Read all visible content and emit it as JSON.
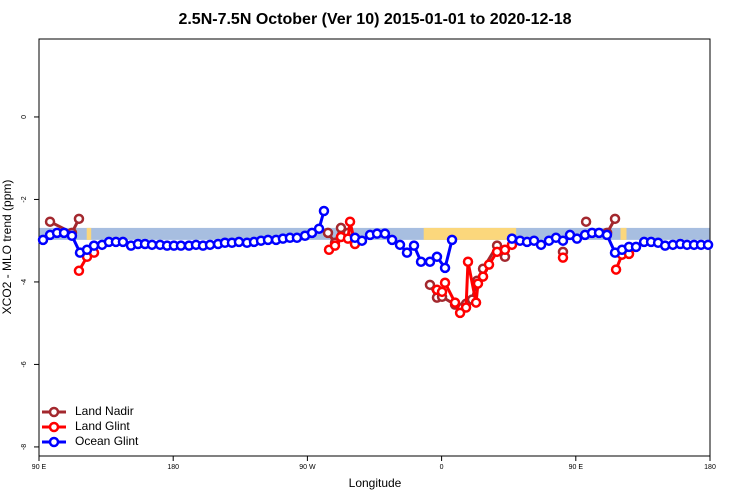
{
  "chart_data": {
    "type": "line",
    "title": "2.5N-7.5N October (Ver 10)   2015-01-01 to 2020-12-18",
    "xlabel": "Longitude",
    "ylabel": "XCO2 - MLO trend (ppm)",
    "xlim": [
      90,
      540
    ],
    "ylim": [
      -8.22,
      1.89
    ],
    "xticks": [
      {
        "value": 90,
        "label": "90 E"
      },
      {
        "value": 180,
        "label": "180"
      },
      {
        "value": 270,
        "label": "90 W"
      },
      {
        "value": 360,
        "label": "0"
      },
      {
        "value": 450,
        "label": "90 E"
      },
      {
        "value": 540,
        "label": "180"
      }
    ],
    "yticks": [
      0,
      -2,
      -4,
      -6,
      -8
    ],
    "legend": "bottom-left",
    "band": {
      "lower": -2.98,
      "upper": -2.69,
      "color": "#a7bee0"
    },
    "band_highlights": [
      {
        "from": 122,
        "to": 125,
        "color": "#fbd77c"
      },
      {
        "from": 348,
        "to": 410,
        "color": "#fbd77c"
      },
      {
        "from": 480,
        "to": 484,
        "color": "#fbd77c"
      }
    ],
    "series": [
      {
        "name": "Land Nadir",
        "color": "#a3282e",
        "x": [
          97.4,
          112.1,
          116.8,
          200,
          283.8,
          288.5,
          292.5,
          297.2,
          303.3,
          330,
          352.2,
          356.9,
          360.3,
          369,
          376.4,
          380.4,
          383.8,
          387.8,
          397.2,
          402.5,
          420,
          441.4,
          450,
          456.9,
          465,
          471,
          476.3
        ],
        "values": [
          -2.54,
          -2.81,
          -2.47,
          null,
          -2.81,
          -3.05,
          -2.69,
          -2.81,
          -2.98,
          null,
          -4.07,
          -4.38,
          -4.36,
          -4.55,
          -4.53,
          -4.43,
          -3.97,
          -3.68,
          -3.12,
          -3.39,
          null,
          -3.27,
          null,
          -2.54,
          null,
          -2.81,
          -2.47
        ]
      },
      {
        "name": "Land Glint",
        "color": "#ff0000",
        "x": [
          116.8,
          122.2,
          126.9,
          200,
          284.5,
          288.5,
          292.5,
          297.2,
          298.6,
          301.9,
          330,
          356.9,
          360.3,
          362.3,
          369,
          372.4,
          376.4,
          377.7,
          383.1,
          384.4,
          387.8,
          391.8,
          397.2,
          402.5,
          407.2,
          420,
          441.4,
          460,
          477,
          481,
          485.7
        ],
        "values": [
          -3.73,
          -3.39,
          -3.29,
          null,
          -3.22,
          -3.12,
          -2.91,
          -2.95,
          -2.54,
          -3.08,
          null,
          -4.19,
          -4.24,
          -4.02,
          -4.5,
          -4.75,
          -4.62,
          -3.51,
          -4.5,
          -4.04,
          -3.87,
          -3.58,
          -3.27,
          -3.22,
          -3.1,
          null,
          -3.41,
          null,
          -3.7,
          -3.34,
          -3.32
        ]
      },
      {
        "name": "Ocean Glint",
        "color": "#0000ff",
        "x": [
          92.7,
          97.4,
          102.1,
          106.8,
          112.1,
          117.5,
          122.2,
          126.9,
          132.3,
          136.9,
          141.6,
          146.3,
          151.7,
          156.4,
          161.1,
          165.8,
          171.2,
          175.9,
          180.5,
          185.2,
          190.6,
          195.3,
          200,
          204.7,
          210.1,
          214.7,
          219.4,
          224.1,
          229.5,
          234.2,
          238.9,
          243.6,
          249,
          253.6,
          258.3,
          263,
          268.4,
          273.1,
          277.8,
          281.1,
          290,
          301.9,
          306.6,
          312,
          316.7,
          322,
          326.8,
          332.1,
          336.8,
          341.5,
          346.2,
          352.2,
          356.9,
          362.3,
          367,
          390,
          407.2,
          412.6,
          417.3,
          422,
          426.7,
          432,
          436.7,
          441.4,
          446.1,
          450.8,
          456.2,
          460.9,
          465.6,
          470.9,
          476.3,
          481,
          485.7,
          490.4,
          495.8,
          500.5,
          505.2,
          509.9,
          515.1,
          520.1,
          524.6,
          529.3,
          534,
          538.7
        ],
        "values": [
          -2.98,
          -2.86,
          -2.81,
          -2.81,
          -2.88,
          -3.29,
          -3.22,
          -3.12,
          -3.1,
          -3.03,
          -3.03,
          -3.03,
          -3.12,
          -3.08,
          -3.08,
          -3.1,
          -3.1,
          -3.12,
          -3.12,
          -3.12,
          -3.12,
          -3.1,
          -3.12,
          -3.1,
          -3.08,
          -3.05,
          -3.05,
          -3.03,
          -3.05,
          -3.03,
          -3.0,
          -2.98,
          -2.98,
          -2.95,
          -2.93,
          -2.93,
          -2.88,
          -2.81,
          -2.71,
          -2.28,
          null,
          -2.93,
          -3.0,
          -2.86,
          -2.83,
          -2.83,
          -2.98,
          -3.1,
          -3.29,
          -3.12,
          -3.51,
          -3.51,
          -3.39,
          -3.66,
          -2.98,
          null,
          -2.95,
          -3.0,
          -3.03,
          -3.0,
          -3.1,
          -3.0,
          -2.93,
          -3.0,
          -2.86,
          -2.95,
          -2.86,
          -2.81,
          -2.81,
          -2.86,
          -3.29,
          -3.22,
          -3.15,
          -3.15,
          -3.03,
          -3.03,
          -3.05,
          -3.12,
          -3.1,
          -3.08,
          -3.1,
          -3.1,
          -3.1,
          -3.1
        ]
      }
    ]
  }
}
